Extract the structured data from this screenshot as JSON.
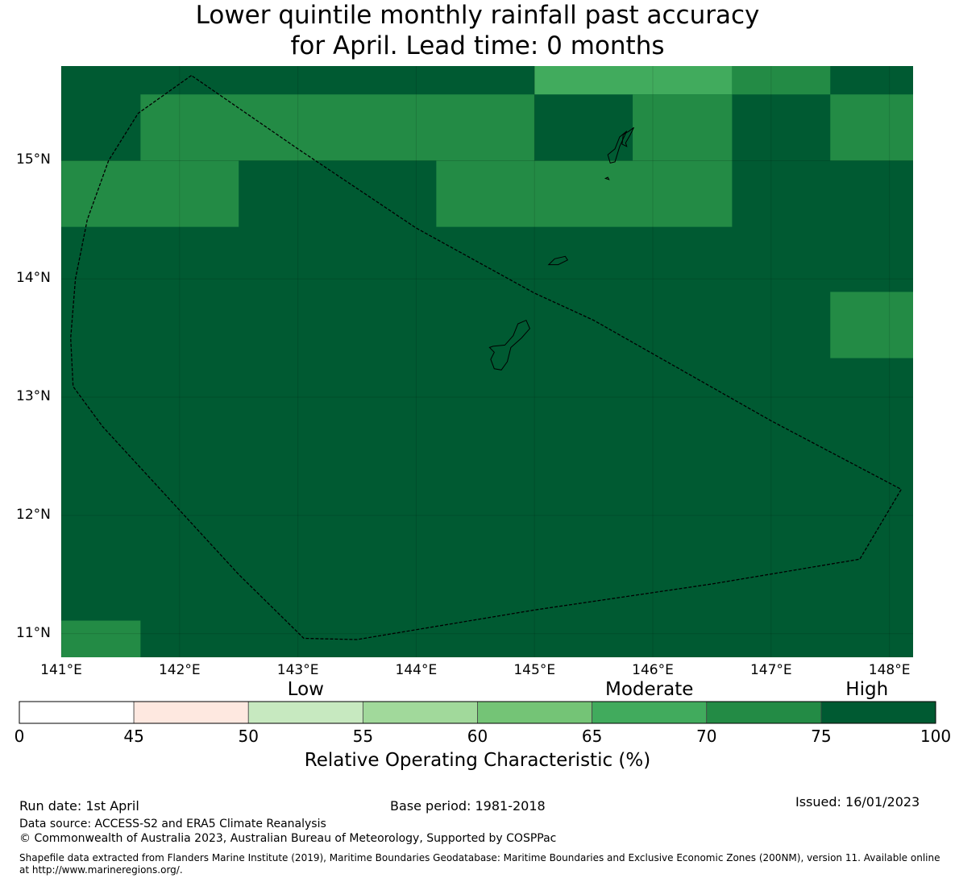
{
  "title": {
    "line1": "Lower quintile monthly rainfall past accuracy",
    "line2": "for April. Lead time: 0 months"
  },
  "map": {
    "lon_range": [
      141.0,
      148.2
    ],
    "lat_range": [
      10.8,
      15.8
    ],
    "lat_ticks": [
      {
        "value": 15,
        "label": "15°N"
      },
      {
        "value": 14,
        "label": "14°N"
      },
      {
        "value": 13,
        "label": "13°N"
      },
      {
        "value": 12,
        "label": "12°N"
      },
      {
        "value": 11,
        "label": "11°N"
      }
    ],
    "lon_ticks": [
      {
        "value": 141,
        "label": "141°E"
      },
      {
        "value": 142,
        "label": "142°E"
      },
      {
        "value": 143,
        "label": "143°E"
      },
      {
        "value": 144,
        "label": "144°E"
      },
      {
        "value": 145,
        "label": "145°E"
      },
      {
        "value": 146,
        "label": "146°E"
      },
      {
        "value": 147,
        "label": "147°E"
      },
      {
        "value": 148,
        "label": "148°E"
      }
    ],
    "base_color": "#005a32",
    "cells": [
      {
        "lon": [
          145.0,
          146.67
        ],
        "lat": [
          15.56,
          15.8
        ],
        "color": "#41ab5d"
      },
      {
        "lon": [
          146.67,
          147.5
        ],
        "lat": [
          15.56,
          15.8
        ],
        "color": "#238b45"
      },
      {
        "lon": [
          141.67,
          145.0
        ],
        "lat": [
          15.0,
          15.56
        ],
        "color": "#238b45"
      },
      {
        "lon": [
          145.83,
          146.67
        ],
        "lat": [
          15.0,
          15.56
        ],
        "color": "#238b45"
      },
      {
        "lon": [
          147.5,
          148.2
        ],
        "lat": [
          15.0,
          15.56
        ],
        "color": "#238b45"
      },
      {
        "lon": [
          141.0,
          142.5
        ],
        "lat": [
          14.44,
          15.0
        ],
        "color": "#238b45"
      },
      {
        "lon": [
          144.17,
          146.67
        ],
        "lat": [
          14.44,
          15.0
        ],
        "color": "#238b45"
      },
      {
        "lon": [
          147.5,
          148.2
        ],
        "lat": [
          13.33,
          13.89
        ],
        "color": "#238b45"
      },
      {
        "lon": [
          141.0,
          141.67
        ],
        "lat": [
          10.8,
          11.11
        ],
        "color": "#238b45"
      }
    ],
    "eez_boundary": [
      [
        142.1,
        15.72
      ],
      [
        141.65,
        15.4
      ],
      [
        141.4,
        15.0
      ],
      [
        141.22,
        14.5
      ],
      [
        141.12,
        14.0
      ],
      [
        141.08,
        13.5
      ],
      [
        141.1,
        13.09
      ],
      [
        141.35,
        12.75
      ],
      [
        142.5,
        11.5
      ],
      [
        143.05,
        10.96
      ],
      [
        143.5,
        10.95
      ],
      [
        145.0,
        11.2
      ],
      [
        146.5,
        11.42
      ],
      [
        147.75,
        11.63
      ],
      [
        148.1,
        12.22
      ],
      [
        147.0,
        12.8
      ],
      [
        145.5,
        13.65
      ],
      [
        145.0,
        13.88
      ],
      [
        144.0,
        14.43
      ],
      [
        143.0,
        15.1
      ]
    ],
    "islands": [
      [
        [
          144.65,
          13.43
        ],
        [
          144.75,
          13.44
        ],
        [
          144.82,
          13.52
        ],
        [
          144.86,
          13.62
        ],
        [
          144.93,
          13.65
        ],
        [
          144.96,
          13.58
        ],
        [
          144.89,
          13.5
        ],
        [
          144.8,
          13.42
        ],
        [
          144.77,
          13.3
        ],
        [
          144.72,
          13.23
        ],
        [
          144.66,
          13.24
        ],
        [
          144.63,
          13.32
        ],
        [
          144.66,
          13.38
        ],
        [
          144.62,
          13.42
        ]
      ],
      [
        [
          145.12,
          14.12
        ],
        [
          145.17,
          14.17
        ],
        [
          145.26,
          14.19
        ],
        [
          145.28,
          14.16
        ],
        [
          145.2,
          14.12
        ]
      ],
      [
        [
          145.62,
          15.05
        ],
        [
          145.68,
          15.1
        ],
        [
          145.72,
          15.2
        ],
        [
          145.78,
          15.25
        ],
        [
          145.72,
          15.12
        ],
        [
          145.68,
          14.99
        ],
        [
          145.64,
          14.98
        ]
      ],
      [
        [
          145.6,
          14.85
        ],
        [
          145.62,
          14.86
        ],
        [
          145.63,
          14.84
        ]
      ],
      [
        [
          145.77,
          15.15
        ],
        [
          145.81,
          15.22
        ],
        [
          145.84,
          15.28
        ],
        [
          145.8,
          15.25
        ],
        [
          145.75,
          15.22
        ],
        [
          145.74,
          15.14
        ],
        [
          145.78,
          15.12
        ]
      ]
    ]
  },
  "colorbar": {
    "category_labels": [
      {
        "label": "Low",
        "value": 52.5
      },
      {
        "label": "Moderate",
        "value": 67.5
      },
      {
        "label": "High",
        "value": 85.0
      }
    ],
    "segments": [
      {
        "from": 0,
        "to": 45,
        "color": "#ffffff"
      },
      {
        "from": 45,
        "to": 50,
        "color": "#fee8e0"
      },
      {
        "from": 50,
        "to": 55,
        "color": "#c7e9c0"
      },
      {
        "from": 55,
        "to": 60,
        "color": "#a1d99b"
      },
      {
        "from": 60,
        "to": 65,
        "color": "#74c476"
      },
      {
        "from": 65,
        "to": 70,
        "color": "#41ab5d"
      },
      {
        "from": 70,
        "to": 75,
        "color": "#238b45"
      },
      {
        "from": 75,
        "to": 100,
        "color": "#005a32"
      }
    ],
    "tick_labels": [
      "0",
      "45",
      "50",
      "55",
      "60",
      "65",
      "70",
      "75",
      "100"
    ],
    "title": "Relative Operating Characteristic (%)"
  },
  "footer": {
    "run_date": "Run date: 1st April",
    "base_period": "Base period: 1981-2018",
    "issued": "Issued: 16/01/2023",
    "data_source": "Data source: ACCESS-S2 and ERA5 Climate Reanalysis",
    "copyright": "© Commonwealth of Australia 2023, Australian Bureau of Meteorology, Supported by COSPPac",
    "shapefile": "Shapefile data extracted from Flanders Marine Institute (2019), Maritime Boundaries Geodatabase: Maritime Boundaries and Exclusive Economic Zones (200NM), version 11. Available online at http://www.marineregions.org/."
  }
}
